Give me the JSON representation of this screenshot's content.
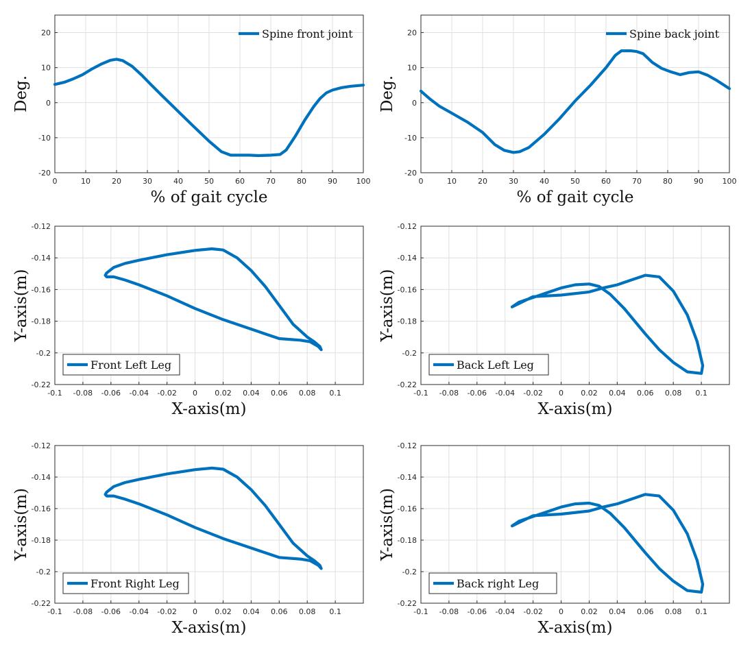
{
  "chart_data": [
    {
      "type": "line",
      "legend": "Spine front joint",
      "legend_position": "top-right",
      "xlabel": "% of gait cycle",
      "ylabel": "Deg.",
      "xlim": [
        0,
        100
      ],
      "ylim": [
        -20,
        25
      ],
      "xticks": [
        0,
        10,
        20,
        30,
        40,
        50,
        60,
        70,
        80,
        90,
        100
      ],
      "yticks": [
        -20,
        -10,
        0,
        10,
        20
      ],
      "xtick_labels": [
        "0",
        "10",
        "20",
        "30",
        "40",
        "50",
        "60",
        "70",
        "80",
        "90",
        "100"
      ],
      "ytick_labels": [
        "-20",
        "-10",
        "0",
        "10",
        "20"
      ],
      "grid": true,
      "series": [
        {
          "name": "Spine front joint",
          "x": [
            0,
            3,
            6,
            9,
            12,
            15,
            18,
            20,
            22,
            25,
            28,
            31,
            35,
            40,
            45,
            50,
            54,
            57,
            60,
            63,
            66,
            70,
            73,
            75,
            78,
            81,
            84,
            86,
            88,
            90,
            93,
            96,
            100
          ],
          "y": [
            5.2,
            5.8,
            6.8,
            8.0,
            9.6,
            11.0,
            12.1,
            12.4,
            12.0,
            10.4,
            8.0,
            5.3,
            1.8,
            -2.5,
            -6.8,
            -11.0,
            -14.0,
            -15.0,
            -15.0,
            -15.0,
            -15.1,
            -15.0,
            -14.8,
            -13.5,
            -9.5,
            -5.0,
            -1.0,
            1.2,
            2.8,
            3.6,
            4.3,
            4.7,
            5.0
          ]
        }
      ]
    },
    {
      "type": "line",
      "legend": "Spine back joint",
      "legend_position": "top-right",
      "xlabel": "% of gait cycle",
      "ylabel": "Deg.",
      "xlim": [
        0,
        100
      ],
      "ylim": [
        -20,
        25
      ],
      "xticks": [
        0,
        10,
        20,
        30,
        40,
        50,
        60,
        70,
        80,
        90,
        100
      ],
      "yticks": [
        -20,
        -10,
        0,
        10,
        20
      ],
      "xtick_labels": [
        "0",
        "10",
        "20",
        "30",
        "40",
        "50",
        "60",
        "70",
        "80",
        "90",
        "100"
      ],
      "ytick_labels": [
        "-20",
        "-10",
        "0",
        "10",
        "20"
      ],
      "grid": true,
      "series": [
        {
          "name": "Spine back joint",
          "x": [
            0,
            3,
            6,
            10,
            15,
            20,
            24,
            27,
            30,
            32,
            35,
            40,
            45,
            50,
            55,
            60,
            63,
            65,
            68,
            70,
            72,
            75,
            78,
            81,
            84,
            87,
            90,
            93,
            96,
            100
          ],
          "y": [
            3.3,
            1.0,
            -1.0,
            -3.0,
            -5.5,
            -8.5,
            -12.0,
            -13.6,
            -14.2,
            -14.0,
            -12.8,
            -9.0,
            -4.5,
            0.5,
            5.0,
            10.0,
            13.5,
            14.8,
            14.8,
            14.6,
            14.0,
            11.5,
            9.8,
            8.8,
            8.0,
            8.6,
            8.8,
            7.8,
            6.3,
            4.0
          ]
        }
      ]
    },
    {
      "type": "line",
      "legend": "Front Left Leg",
      "legend_position": "bottom-left",
      "xlabel": "X-axis(m)",
      "ylabel": "Y-axis(m)",
      "xlim": [
        -0.1,
        0.12
      ],
      "ylim": [
        -0.22,
        -0.12
      ],
      "xticks": [
        -0.1,
        -0.08,
        -0.06,
        -0.04,
        -0.02,
        0,
        0.02,
        0.04,
        0.06,
        0.08,
        0.1
      ],
      "yticks": [
        -0.22,
        -0.2,
        -0.18,
        -0.16,
        -0.14,
        -0.12
      ],
      "xtick_labels": [
        "-0.1",
        "-0.08",
        "-0.06",
        "-0.04",
        "-0.02",
        "0",
        "0.02",
        "0.04",
        "0.06",
        "0.08",
        "0.1"
      ],
      "ytick_labels": [
        "-0.22",
        "-0.2",
        "-0.18",
        "-0.16",
        "-0.14",
        "-0.12"
      ],
      "grid": true,
      "series": [
        {
          "name": "Front Left Leg",
          "x": [
            -0.063,
            -0.058,
            -0.05,
            -0.04,
            -0.02,
            0.0,
            0.012,
            0.02,
            0.03,
            0.04,
            0.05,
            0.06,
            0.07,
            0.08,
            0.085,
            0.089,
            0.09,
            0.088,
            0.082,
            0.075,
            0.06,
            0.05,
            0.04,
            0.02,
            0.0,
            -0.02,
            -0.04,
            -0.05,
            -0.058,
            -0.063,
            -0.064,
            -0.063
          ],
          "y": [
            -0.1495,
            -0.146,
            -0.1435,
            -0.1415,
            -0.138,
            -0.1353,
            -0.1343,
            -0.135,
            -0.14,
            -0.148,
            -0.158,
            -0.17,
            -0.182,
            -0.19,
            -0.193,
            -0.196,
            -0.198,
            -0.196,
            -0.193,
            -0.192,
            -0.191,
            -0.188,
            -0.185,
            -0.179,
            -0.172,
            -0.164,
            -0.157,
            -0.154,
            -0.152,
            -0.152,
            -0.151,
            -0.1495
          ]
        }
      ]
    },
    {
      "type": "line",
      "legend": "Back Left Leg",
      "legend_position": "bottom-left",
      "xlabel": "X-axis(m)",
      "ylabel": "Y-axis(m)",
      "xlim": [
        -0.1,
        0.12
      ],
      "ylim": [
        -0.22,
        -0.12
      ],
      "xticks": [
        -0.1,
        -0.08,
        -0.06,
        -0.04,
        -0.02,
        0,
        0.02,
        0.04,
        0.06,
        0.08,
        0.1
      ],
      "yticks": [
        -0.22,
        -0.2,
        -0.18,
        -0.16,
        -0.14,
        -0.12
      ],
      "xtick_labels": [
        "-0.1",
        "-0.08",
        "-0.06",
        "-0.04",
        "-0.02",
        "0",
        "0.02",
        "0.04",
        "0.06",
        "0.08",
        "0.1"
      ],
      "ytick_labels": [
        "-0.22",
        "-0.2",
        "-0.18",
        "-0.16",
        "-0.14",
        "-0.12"
      ],
      "grid": true,
      "series": [
        {
          "name": "Back Left Leg",
          "x": [
            -0.035,
            -0.03,
            -0.02,
            -0.01,
            0.0,
            0.01,
            0.02,
            0.027,
            0.035,
            0.045,
            0.06,
            0.07,
            0.08,
            0.09,
            0.1,
            0.101,
            0.097,
            0.09,
            0.08,
            0.07,
            0.06,
            0.05,
            0.04,
            0.03,
            0.02,
            0.0,
            -0.02,
            -0.035
          ],
          "y": [
            -0.171,
            -0.168,
            -0.165,
            -0.162,
            -0.159,
            -0.157,
            -0.1565,
            -0.158,
            -0.163,
            -0.172,
            -0.188,
            -0.198,
            -0.206,
            -0.212,
            -0.213,
            -0.208,
            -0.193,
            -0.176,
            -0.161,
            -0.152,
            -0.151,
            -0.154,
            -0.157,
            -0.159,
            -0.1615,
            -0.1635,
            -0.1645,
            -0.171
          ]
        }
      ]
    },
    {
      "type": "line",
      "legend": "Front Right Leg",
      "legend_position": "bottom-left",
      "xlabel": "X-axis(m)",
      "ylabel": "Y-axis(m)",
      "xlim": [
        -0.1,
        0.12
      ],
      "ylim": [
        -0.22,
        -0.12
      ],
      "xticks": [
        -0.1,
        -0.08,
        -0.06,
        -0.04,
        -0.02,
        0,
        0.02,
        0.04,
        0.06,
        0.08,
        0.1
      ],
      "yticks": [
        -0.22,
        -0.2,
        -0.18,
        -0.16,
        -0.14,
        -0.12
      ],
      "xtick_labels": [
        "-0.1",
        "-0.08",
        "-0.06",
        "-0.04",
        "-0.02",
        "0",
        "0.02",
        "0.04",
        "0.06",
        "0.08",
        "0.1"
      ],
      "ytick_labels": [
        "-0.22",
        "-0.2",
        "-0.18",
        "-0.16",
        "-0.14",
        "-0.12"
      ],
      "grid": true,
      "series": [
        {
          "name": "Front Right Leg",
          "x": [
            -0.063,
            -0.058,
            -0.05,
            -0.04,
            -0.02,
            0.0,
            0.012,
            0.02,
            0.03,
            0.04,
            0.05,
            0.06,
            0.07,
            0.08,
            0.085,
            0.089,
            0.09,
            0.088,
            0.082,
            0.075,
            0.06,
            0.05,
            0.04,
            0.02,
            0.0,
            -0.02,
            -0.04,
            -0.05,
            -0.058,
            -0.063,
            -0.064,
            -0.063
          ],
          "y": [
            -0.1495,
            -0.146,
            -0.1435,
            -0.1415,
            -0.138,
            -0.1353,
            -0.1343,
            -0.135,
            -0.14,
            -0.148,
            -0.158,
            -0.17,
            -0.182,
            -0.19,
            -0.193,
            -0.196,
            -0.198,
            -0.196,
            -0.193,
            -0.192,
            -0.191,
            -0.188,
            -0.185,
            -0.179,
            -0.172,
            -0.164,
            -0.157,
            -0.154,
            -0.152,
            -0.152,
            -0.151,
            -0.1495
          ]
        }
      ]
    },
    {
      "type": "line",
      "legend": "Back right Leg",
      "legend_position": "bottom-left",
      "xlabel": "X-axis(m)",
      "ylabel": "Y-axis(m)",
      "xlim": [
        -0.1,
        0.12
      ],
      "ylim": [
        -0.22,
        -0.12
      ],
      "xticks": [
        -0.1,
        -0.08,
        -0.06,
        -0.04,
        -0.02,
        0,
        0.02,
        0.04,
        0.06,
        0.08,
        0.1
      ],
      "yticks": [
        -0.22,
        -0.2,
        -0.18,
        -0.16,
        -0.14,
        -0.12
      ],
      "xtick_labels": [
        "-0.1",
        "-0.08",
        "-0.06",
        "-0.04",
        "-0.02",
        "0",
        "0.02",
        "0.04",
        "0.06",
        "0.08",
        "0.1"
      ],
      "ytick_labels": [
        "-0.22",
        "-0.2",
        "-0.18",
        "-0.16",
        "-0.14",
        "-0.12"
      ],
      "grid": true,
      "series": [
        {
          "name": "Back right Leg",
          "x": [
            -0.035,
            -0.03,
            -0.02,
            -0.01,
            0.0,
            0.01,
            0.02,
            0.027,
            0.035,
            0.045,
            0.06,
            0.07,
            0.08,
            0.09,
            0.1,
            0.101,
            0.097,
            0.09,
            0.08,
            0.07,
            0.06,
            0.05,
            0.04,
            0.03,
            0.02,
            0.0,
            -0.02,
            -0.035
          ],
          "y": [
            -0.171,
            -0.168,
            -0.165,
            -0.162,
            -0.159,
            -0.157,
            -0.1565,
            -0.158,
            -0.163,
            -0.172,
            -0.188,
            -0.198,
            -0.206,
            -0.212,
            -0.213,
            -0.208,
            -0.193,
            -0.176,
            -0.161,
            -0.152,
            -0.151,
            -0.154,
            -0.157,
            -0.159,
            -0.1615,
            -0.1635,
            -0.1645,
            -0.171
          ]
        }
      ]
    }
  ],
  "colors": {
    "series": "#0072BD",
    "grid": "#dfdfdf",
    "frame": "#2b2b2b",
    "text": "#111111"
  }
}
